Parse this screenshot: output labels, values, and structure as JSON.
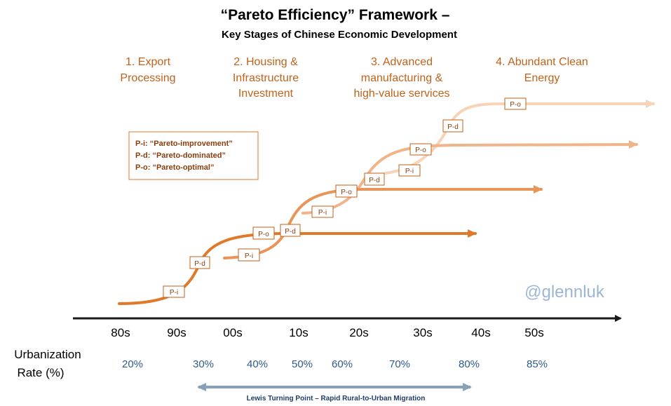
{
  "title": {
    "line1": "“Pareto Efficiency” Framework –",
    "line2": "Key Stages of Chinese Economic Development"
  },
  "stages": [
    {
      "lines": [
        "1. Export",
        "Processing"
      ]
    },
    {
      "lines": [
        "2. Housing &",
        "Infrastructure",
        "Investment"
      ]
    },
    {
      "lines": [
        "3. Advanced",
        "manufacturing &",
        "high-value services"
      ]
    },
    {
      "lines": [
        "4. Abundant Clean",
        "Energy"
      ]
    }
  ],
  "legend": [
    "P-i: “Pareto-improvement”",
    "P-d: “Pareto-dominated”",
    "P-o: “Pareto-optimal”"
  ],
  "badges": {
    "improvement": "P-i",
    "dominated": "P-d",
    "optimal": "P-o"
  },
  "curves": [
    {
      "stage": 1,
      "color": "#e07a2a",
      "opacity": 1.0
    },
    {
      "stage": 2,
      "color": "#e8955a",
      "opacity": 1.0
    },
    {
      "stage": 3,
      "color": "#f0b48a",
      "opacity": 1.0
    },
    {
      "stage": 4,
      "color": "#f7d3b8",
      "opacity": 1.0
    }
  ],
  "watermark": "@glennluk",
  "timeline": {
    "decades": [
      "80s",
      "90s",
      "00s",
      "10s",
      "20s",
      "30s",
      "40s",
      "50s"
    ]
  },
  "urbanization": {
    "label_line1": "Urbanization",
    "label_line2": "Rate (%)",
    "values": [
      "20%",
      "30%",
      "40%",
      "50%",
      "60%",
      "70%",
      "80%",
      "85%"
    ]
  },
  "lewis": {
    "label": "Lewis Turning Point – Rapid Rural-to-Urban Migration"
  }
}
